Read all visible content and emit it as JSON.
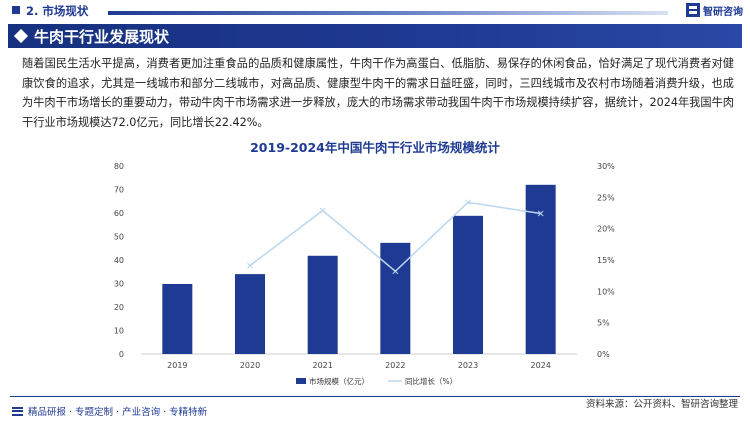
{
  "header": {
    "section_label": "2. 市场现状",
    "brand": "智研咨询"
  },
  "banner": {
    "title": "牛肉干行业发展现状"
  },
  "body": {
    "paragraph": "随着国民生活水平提高，消费者更加注重食品的品质和健康属性，牛肉干作为高蛋白、低脂肪、易保存的休闲食品，恰好满足了现代消费者对健康饮食的追求，尤其是一线城市和部分二线城市，对高品质、健康型牛肉干的需求日益旺盛，同时，三四线城市及农村市场随着消费升级，也成为牛肉干市场增长的重要动力，带动牛肉干市场需求进一步释放，庞大的市场需求带动我国牛肉干市场规模持续扩容，据统计，2024年我国牛肉干行业市场规模达72.0亿元，同比增长22.42%。"
  },
  "chart_data": {
    "type": "bar",
    "title": "2019-2024年中国牛肉干行业市场规模统计",
    "categories": [
      "2019",
      "2020",
      "2021",
      "2022",
      "2023",
      "2024"
    ],
    "series": [
      {
        "name": "市场规模（亿元）",
        "type": "bar",
        "axis": "left",
        "values": [
          29.8,
          34.0,
          41.8,
          47.3,
          58.8,
          72.0
        ]
      },
      {
        "name": "同比增长（%）",
        "type": "line",
        "axis": "right",
        "values": [
          null,
          14.1,
          22.9,
          13.2,
          24.2,
          22.42
        ]
      }
    ],
    "left_axis": {
      "ylim": [
        0,
        80
      ],
      "ticks": [
        "0",
        "10",
        "20",
        "30",
        "40",
        "50",
        "60",
        "70",
        "80"
      ]
    },
    "right_axis": {
      "ylim": [
        0,
        30
      ],
      "ticks": [
        "0%",
        "5%",
        "10%",
        "15%",
        "20%",
        "25%",
        "30%"
      ]
    },
    "grid": false,
    "legend_position": "bottom",
    "colors": {
      "bar": "#1f3a93",
      "line": "#bcd6ee"
    }
  },
  "footer": {
    "tagline": "精品研报 · 专题定制 · 产业咨询 · 专精特新",
    "source": "资料来源：公开资料、智研咨询整理"
  }
}
